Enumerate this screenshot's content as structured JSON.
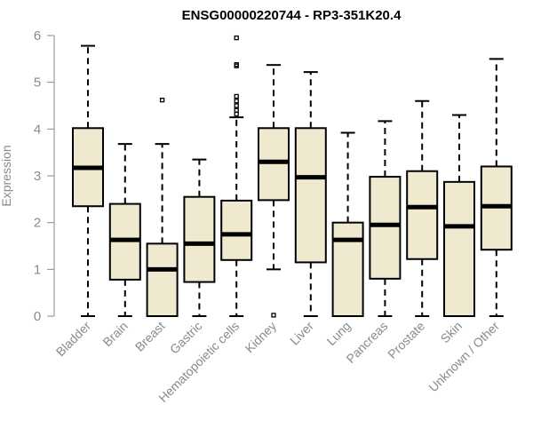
{
  "chart_data": {
    "type": "box",
    "title": "ENSG00000220744 - RP3-351K20.4",
    "xlabel": "",
    "ylabel": "Expression",
    "ylim": [
      0,
      6
    ],
    "yticks": [
      0,
      1,
      2,
      3,
      4,
      5,
      6
    ],
    "grid": false,
    "categories": [
      "Bladder",
      "Brain",
      "Breast",
      "Gastric",
      "Hematopoietic cells",
      "Kidney",
      "Liver",
      "Lung",
      "Pancreas",
      "Prostate",
      "Skin",
      "Unknown / Other"
    ],
    "boxes": [
      {
        "min": 0,
        "q1": 2.35,
        "median": 3.17,
        "q3": 4.02,
        "max": 5.78,
        "outliers": []
      },
      {
        "min": 0,
        "q1": 0.78,
        "median": 1.63,
        "q3": 2.4,
        "max": 3.68,
        "outliers": []
      },
      {
        "min": 0,
        "q1": 0,
        "median": 1.0,
        "q3": 1.55,
        "max": 3.68,
        "outliers": [
          4.62
        ]
      },
      {
        "min": 0,
        "q1": 0.73,
        "median": 1.55,
        "q3": 2.55,
        "max": 3.35,
        "outliers": []
      },
      {
        "min": 0,
        "q1": 1.2,
        "median": 1.75,
        "q3": 2.47,
        "max": 4.25,
        "outliers": [
          4.32,
          4.4,
          4.5,
          4.6,
          4.7,
          5.35,
          5.38,
          5.95
        ]
      },
      {
        "min": 1.0,
        "q1": 2.48,
        "median": 3.3,
        "q3": 4.02,
        "max": 5.37,
        "outliers": [
          0.02
        ]
      },
      {
        "min": 0,
        "q1": 1.15,
        "median": 2.97,
        "q3": 4.02,
        "max": 5.22,
        "outliers": []
      },
      {
        "min": 0,
        "q1": 0,
        "median": 1.63,
        "q3": 2.0,
        "max": 3.92,
        "outliers": []
      },
      {
        "min": 0,
        "q1": 0.8,
        "median": 1.95,
        "q3": 2.98,
        "max": 4.17,
        "outliers": []
      },
      {
        "min": 0,
        "q1": 1.22,
        "median": 2.33,
        "q3": 3.1,
        "max": 4.6,
        "outliers": []
      },
      {
        "min": 0,
        "q1": 0,
        "median": 1.92,
        "q3": 2.87,
        "max": 4.3,
        "outliers": []
      },
      {
        "min": 0,
        "q1": 1.42,
        "median": 2.35,
        "q3": 3.2,
        "max": 5.5,
        "outliers": []
      }
    ]
  }
}
